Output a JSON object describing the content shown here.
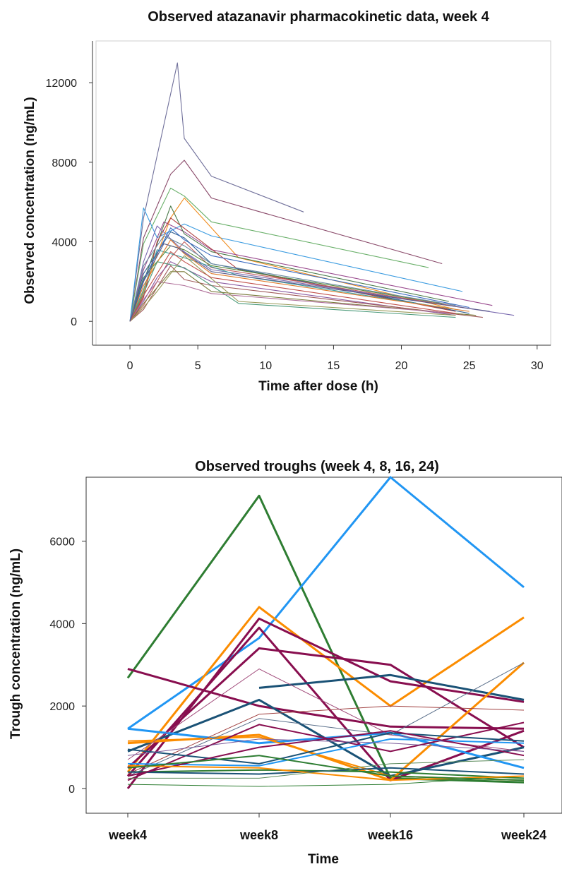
{
  "chart_data": [
    {
      "type": "line",
      "title": "Observed atazanavir pharmacokinetic data, week 4",
      "xlabel": "Time after dose (h)",
      "ylabel": "Observed concentration (ng/mL)",
      "xlim": [
        -2.5,
        31
      ],
      "ylim": [
        -1200,
        14100
      ],
      "x_ticks": [
        0,
        5,
        10,
        15,
        20,
        25,
        30
      ],
      "y_ticks": [
        0,
        4000,
        8000,
        12000
      ],
      "grid": false,
      "legend": "none",
      "series": [
        {
          "color": "#6f6f9a",
          "x": [
            0,
            1.0,
            3.5,
            4.0,
            6.0,
            12.8
          ],
          "y": [
            0,
            5200,
            13000,
            9200,
            7300,
            5500
          ]
        },
        {
          "color": "#8a4a6a",
          "x": [
            0,
            1.0,
            3.0,
            4.0,
            6.0,
            23.0
          ],
          "y": [
            0,
            4200,
            7400,
            8100,
            6200,
            2900
          ]
        },
        {
          "color": "#6ab06a",
          "x": [
            0,
            1.0,
            3.0,
            4.0,
            6.0,
            22.0
          ],
          "y": [
            0,
            3900,
            6700,
            6300,
            5000,
            2700
          ]
        },
        {
          "color": "#3a9be0",
          "x": [
            0,
            1.0,
            2.0,
            4.0,
            6.0,
            24.5
          ],
          "y": [
            0,
            5700,
            4200,
            4900,
            4300,
            1500
          ]
        },
        {
          "color": "#f08c1e",
          "x": [
            0,
            1.0,
            3.0,
            4.0,
            8.0,
            24.0
          ],
          "y": [
            0,
            1500,
            5200,
            6200,
            3200,
            600
          ]
        },
        {
          "color": "#9a4b8f",
          "x": [
            0,
            1.0,
            2.5,
            4.0,
            6.0,
            26.7
          ],
          "y": [
            0,
            2600,
            5000,
            4500,
            3600,
            800
          ]
        },
        {
          "color": "#4a7a4a",
          "x": [
            0,
            1.0,
            3.0,
            4.0,
            6.0,
            23.5
          ],
          "y": [
            0,
            2000,
            5800,
            4400,
            3500,
            1000
          ]
        },
        {
          "color": "#b04040",
          "x": [
            0,
            1.0,
            2.0,
            3.0,
            8.0,
            24.0
          ],
          "y": [
            0,
            1200,
            4000,
            5200,
            2600,
            500
          ]
        },
        {
          "color": "#2f5f8f",
          "x": [
            0,
            1.0,
            3.0,
            4.0,
            6.0,
            25.0
          ],
          "y": [
            0,
            2400,
            4500,
            4200,
            2900,
            400
          ]
        },
        {
          "color": "#7a6ab0",
          "x": [
            0,
            1.0,
            2.0,
            4.0,
            6.0,
            28.3
          ],
          "y": [
            0,
            3000,
            4800,
            3500,
            2600,
            300
          ]
        },
        {
          "color": "#c06060",
          "x": [
            0,
            1.0,
            3.0,
            4.0,
            6.0,
            24.5
          ],
          "y": [
            0,
            800,
            3200,
            4000,
            2700,
            700
          ]
        },
        {
          "color": "#3aa0a0",
          "x": [
            0,
            1.0,
            2.0,
            4.0,
            8.0,
            24.0
          ],
          "y": [
            0,
            1600,
            3600,
            3200,
            2300,
            600
          ]
        },
        {
          "color": "#5a8a3a",
          "x": [
            0,
            1.0,
            3.0,
            4.0,
            6.0,
            23.0
          ],
          "y": [
            0,
            2200,
            3800,
            3600,
            2800,
            900
          ]
        },
        {
          "color": "#8a5aa0",
          "x": [
            0,
            1.0,
            2.0,
            3.0,
            6.0,
            24.0
          ],
          "y": [
            0,
            1000,
            2200,
            3000,
            2000,
            300
          ]
        },
        {
          "color": "#e07a2a",
          "x": [
            0,
            1.0,
            3.0,
            4.0,
            6.0,
            25.0
          ],
          "y": [
            0,
            1800,
            4100,
            3400,
            2400,
            500
          ]
        },
        {
          "color": "#6a8aa0",
          "x": [
            0,
            1.0,
            2.5,
            4.0,
            6.0,
            24.0
          ],
          "y": [
            0,
            2800,
            4300,
            3800,
            2900,
            800
          ]
        },
        {
          "color": "#a05a5a",
          "x": [
            0,
            1.0,
            3.0,
            4.0,
            6.0,
            26.0
          ],
          "y": [
            0,
            600,
            2800,
            2100,
            1800,
            200
          ]
        },
        {
          "color": "#4a9a7a",
          "x": [
            0,
            1.0,
            2.0,
            4.0,
            8.0,
            24.0
          ],
          "y": [
            0,
            1400,
            3000,
            2700,
            900,
            200
          ]
        },
        {
          "color": "#7a7a3a",
          "x": [
            0,
            1.0,
            3.0,
            4.0,
            6.0,
            25.5
          ],
          "y": [
            0,
            900,
            2500,
            2500,
            1500,
            300
          ]
        },
        {
          "color": "#b0709a",
          "x": [
            0,
            1.0,
            2.0,
            4.0,
            6.0,
            24.0
          ],
          "y": [
            0,
            1100,
            2000,
            1800,
            1400,
            400
          ]
        },
        {
          "color": "#3a6ac0",
          "x": [
            0,
            1.0,
            3.0,
            4.0,
            6.0,
            25.0
          ],
          "y": [
            0,
            2100,
            4700,
            4100,
            3300,
            700
          ]
        },
        {
          "color": "#9a9a5a",
          "x": [
            0,
            1.0,
            2.0,
            4.0,
            8.0,
            24.0
          ],
          "y": [
            0,
            700,
            1500,
            3300,
            1000,
            300
          ]
        },
        {
          "color": "#c0504a",
          "x": [
            0,
            1.0,
            3.0,
            4.0,
            6.0,
            24.0
          ],
          "y": [
            0,
            1300,
            3500,
            3000,
            2200,
            400
          ]
        },
        {
          "color": "#5a5a8a",
          "x": [
            0,
            1.0,
            2.5,
            3.5,
            6.0,
            26.5
          ],
          "y": [
            0,
            2000,
            3900,
            3700,
            2500,
            500
          ]
        }
      ]
    },
    {
      "type": "line",
      "title": "Observed troughs (week 4, 8, 16, 24)",
      "xlabel": "Time",
      "ylabel": "Trough concentration (ng/mL)",
      "categories": [
        "week4",
        "week8",
        "week16",
        "week24"
      ],
      "ylim": [
        -600,
        7550
      ],
      "y_ticks": [
        0,
        2000,
        4000,
        6000
      ],
      "grid": false,
      "legend": "none",
      "series": [
        {
          "color": "#2e7d32",
          "width": 3,
          "values": [
            2680,
            7100,
            250,
            150
          ]
        },
        {
          "color": "#2196f3",
          "width": 3,
          "values": [
            1450,
            3650,
            7550,
            4880
          ]
        },
        {
          "color": "#fb8c00",
          "width": 3,
          "values": [
            400,
            4400,
            2000,
            4150
          ]
        },
        {
          "color": "#880e4f",
          "width": 3,
          "values": [
            2900,
            2000,
            1500,
            1450
          ]
        },
        {
          "color": "#880e4f",
          "width": 3,
          "values": [
            0,
            4120,
            2600,
            2100
          ]
        },
        {
          "color": "#880e4f",
          "width": 3,
          "values": [
            300,
            3900,
            200,
            1400
          ]
        },
        {
          "color": "#880e4f",
          "width": 3,
          "values": [
            500,
            3400,
            3000,
            1000
          ]
        },
        {
          "color": "#1a5276",
          "width": 3,
          "values": [
            null,
            2440,
            2750,
            2150
          ]
        },
        {
          "color": "#1a5276",
          "width": 3,
          "values": [
            900,
            2150,
            300,
            1000
          ]
        },
        {
          "color": "#fb8c00",
          "width": 3,
          "values": [
            1100,
            1300,
            200,
            3050
          ]
        },
        {
          "color": "#2196f3",
          "width": 3,
          "values": [
            1450,
            1100,
            1350,
            500
          ]
        },
        {
          "color": "#fb8c00",
          "width": 2,
          "values": [
            1150,
            1250,
            300,
            200
          ]
        },
        {
          "color": "#880e4f",
          "width": 2,
          "values": [
            200,
            1550,
            900,
            1600
          ]
        },
        {
          "color": "#5a6f8a",
          "width": 1,
          "values": [
            300,
            1700,
            1300,
            3050
          ]
        },
        {
          "color": "#a04040",
          "width": 1,
          "values": [
            350,
            1800,
            2000,
            1900
          ]
        },
        {
          "color": "#a04a7a",
          "width": 1,
          "values": [
            700,
            2900,
            1300,
            900
          ]
        },
        {
          "color": "#1a5276",
          "width": 2,
          "values": [
            950,
            600,
            1350,
            1150
          ]
        },
        {
          "color": "#2196f3",
          "width": 2,
          "values": [
            600,
            550,
            1200,
            1100
          ]
        },
        {
          "color": "#2e7d32",
          "width": 2,
          "values": [
            400,
            450,
            400,
            250
          ]
        },
        {
          "color": "#2e7d32",
          "width": 1,
          "values": [
            100,
            50,
            100,
            300
          ]
        },
        {
          "color": "#1a5276",
          "width": 2,
          "values": [
            400,
            350,
            500,
            350
          ]
        },
        {
          "color": "#880e4f",
          "width": 2,
          "values": [
            300,
            1000,
            1400,
            800
          ]
        },
        {
          "color": "#fb8c00",
          "width": 2,
          "values": [
            550,
            500,
            200,
            300
          ]
        },
        {
          "color": "#2e7d32",
          "width": 2,
          "values": [
            500,
            800,
            300,
            200
          ]
        },
        {
          "color": "#5a8a5a",
          "width": 1,
          "values": [
            250,
            250,
            600,
            700
          ]
        },
        {
          "color": "#7a5a9a",
          "width": 1,
          "values": [
            800,
            1200,
            1100,
            900
          ]
        }
      ]
    }
  ]
}
